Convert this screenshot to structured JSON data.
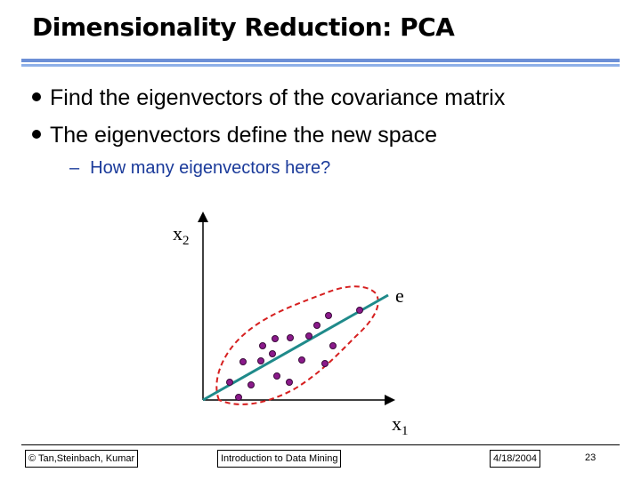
{
  "slide": {
    "title": "Dimensionality Reduction: PCA",
    "bullets": [
      "Find the eigenvectors of the covariance matrix",
      "The eigenvectors define the new space"
    ],
    "sub_bullet": "How many eigenvectors here?"
  },
  "figure": {
    "x_axis_label": "x",
    "x_axis_subscript": "1",
    "y_axis_label": "x",
    "y_axis_subscript": "2",
    "vector_label": "e",
    "colors": {
      "points": "#8b1a8b",
      "ellipse": "#d62020",
      "vector": "#1f8a8a"
    }
  },
  "footer": {
    "left": "© Tan,Steinbach, Kumar",
    "center": "Introduction to Data Mining",
    "date": "4/18/2004",
    "page": "23"
  }
}
